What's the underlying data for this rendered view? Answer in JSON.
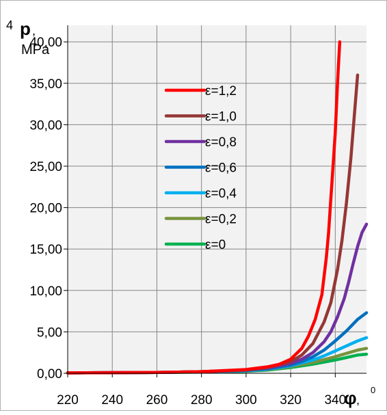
{
  "chart_data": {
    "type": "line",
    "ylabel_bold": "p",
    "ylabel_sep": ",",
    "ylabel_unit": "MPa",
    "ylabel_cut": "4",
    "xlabel_bold": "φ",
    "xlabel_sep": ",",
    "xlabel_unit": "0",
    "xlim": [
      220,
      350
    ],
    "ylim": [
      0,
      42
    ],
    "x_ticks": [
      220,
      240,
      260,
      280,
      300,
      320,
      340
    ],
    "x_tick_labels": [
      "220",
      "240",
      "260",
      "280",
      "300",
      "320",
      "340"
    ],
    "y_ticks": [
      0,
      5,
      10,
      15,
      20,
      25,
      30,
      35,
      40
    ],
    "y_tick_labels": [
      "0,00",
      "5,00",
      "10,00",
      "15,00",
      "20,00",
      "25,00",
      "30,00",
      "35,00",
      "40,00"
    ],
    "grid": true,
    "legend_position": "upper-center",
    "series": [
      {
        "name": "ε=1,2",
        "color": "#ff0000",
        "x": [
          220,
          260,
          280,
          300,
          310,
          315,
          320,
          325,
          328,
          331,
          334,
          336,
          337,
          338,
          339,
          340,
          340.5,
          341,
          342
        ],
        "y": [
          0.05,
          0.1,
          0.2,
          0.45,
          0.8,
          1.1,
          1.7,
          3.0,
          4.5,
          6.5,
          9.5,
          14,
          17,
          21,
          25,
          29,
          32,
          35,
          40
        ]
      },
      {
        "name": "ε=1,0",
        "color": "#953735",
        "x": [
          220,
          260,
          280,
          300,
          310,
          320,
          325,
          330,
          335,
          338,
          341,
          343,
          345,
          347,
          348.5,
          350
        ],
        "y": [
          0.05,
          0.1,
          0.2,
          0.4,
          0.7,
          1.4,
          2.2,
          3.6,
          6.2,
          8.5,
          12.5,
          16,
          20.5,
          26,
          31,
          36
        ]
      },
      {
        "name": "ε=0,8",
        "color": "#7030a0",
        "x": [
          220,
          260,
          280,
          300,
          310,
          320,
          325,
          330,
          335,
          338,
          341,
          344,
          346,
          348,
          350,
          352,
          354
        ],
        "y": [
          0.05,
          0.1,
          0.2,
          0.4,
          0.65,
          1.2,
          1.7,
          2.5,
          3.8,
          5.0,
          6.8,
          9.0,
          11.0,
          13.2,
          15.3,
          17.0,
          18.0
        ]
      },
      {
        "name": "ε=0,6",
        "color": "#0070c0",
        "x": [
          220,
          260,
          280,
          300,
          310,
          320,
          325,
          330,
          335,
          340,
          345,
          350,
          354
        ],
        "y": [
          0.05,
          0.1,
          0.2,
          0.35,
          0.55,
          1.0,
          1.4,
          2.0,
          2.8,
          3.9,
          5.1,
          6.5,
          7.3
        ]
      },
      {
        "name": "ε=0,4",
        "color": "#00b0f0",
        "x": [
          220,
          260,
          280,
          300,
          310,
          320,
          330,
          335,
          340,
          345,
          350,
          354
        ],
        "y": [
          0.05,
          0.1,
          0.18,
          0.3,
          0.5,
          0.9,
          1.6,
          2.1,
          2.7,
          3.3,
          3.9,
          4.3
        ]
      },
      {
        "name": "ε=0,2",
        "color": "#77933c",
        "x": [
          220,
          260,
          280,
          300,
          310,
          320,
          330,
          340,
          345,
          350,
          354
        ],
        "y": [
          0.05,
          0.1,
          0.16,
          0.28,
          0.45,
          0.8,
          1.3,
          2.0,
          2.4,
          2.8,
          3.0
        ]
      },
      {
        "name": "ε=0",
        "color": "#00b050",
        "x": [
          220,
          260,
          280,
          300,
          310,
          320,
          330,
          340,
          345,
          350,
          354
        ],
        "y": [
          0.05,
          0.1,
          0.15,
          0.25,
          0.4,
          0.7,
          1.1,
          1.6,
          1.9,
          2.2,
          2.3
        ]
      }
    ]
  }
}
